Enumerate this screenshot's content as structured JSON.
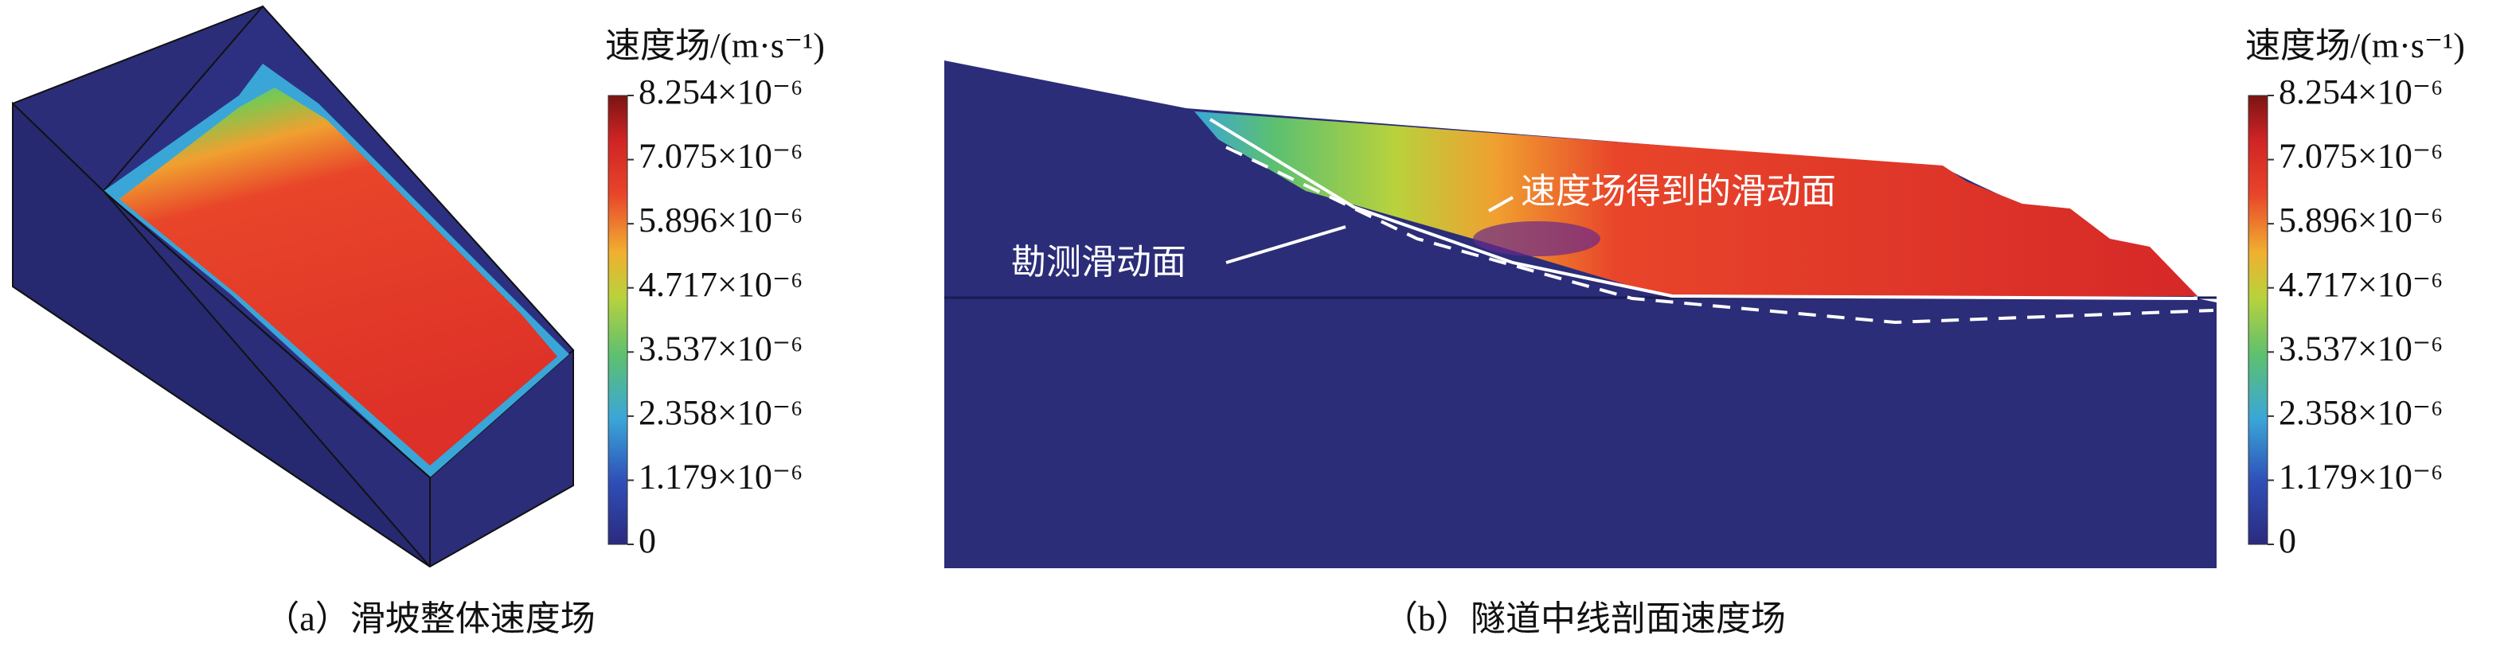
{
  "panels": [
    {
      "caption": "（a）滑坡整体速度场",
      "colorbar": {
        "title": "速度场/(m·s⁻¹)",
        "ticks": [
          {
            "value": 8.254e-06,
            "label": "8.254×10⁻⁶"
          },
          {
            "value": 7.075e-06,
            "label": "7.075×10⁻⁶"
          },
          {
            "value": 5.896e-06,
            "label": "5.896×10⁻⁶"
          },
          {
            "value": 4.717e-06,
            "label": "4.717×10⁻⁶"
          },
          {
            "value": 3.537e-06,
            "label": "3.537×10⁻⁶"
          },
          {
            "value": 2.358e-06,
            "label": "2.358×10⁻⁶"
          },
          {
            "value": 1.179e-06,
            "label": "1.179×10⁻⁶"
          },
          0
        ]
      }
    },
    {
      "caption": "（b）隧道中线剖面速度场",
      "annotations": [
        "速度场得到的滑动面",
        "勘测滑动面"
      ],
      "colorbar": {
        "title": "速度场/(m·s⁻¹)",
        "ticks": [
          {
            "value": 8.254e-06,
            "label": "8.254×10⁻⁶"
          },
          {
            "value": 7.075e-06,
            "label": "7.075×10⁻⁶"
          },
          {
            "value": 5.896e-06,
            "label": "5.896×10⁻⁶"
          },
          {
            "value": 4.717e-06,
            "label": "4.717×10⁻⁶"
          },
          {
            "value": 3.537e-06,
            "label": "3.537×10⁻⁶"
          },
          {
            "value": 2.358e-06,
            "label": "2.358×10⁻⁶"
          },
          {
            "value": 1.179e-06,
            "label": "1.179×10⁻⁶"
          },
          0
        ]
      }
    }
  ]
}
